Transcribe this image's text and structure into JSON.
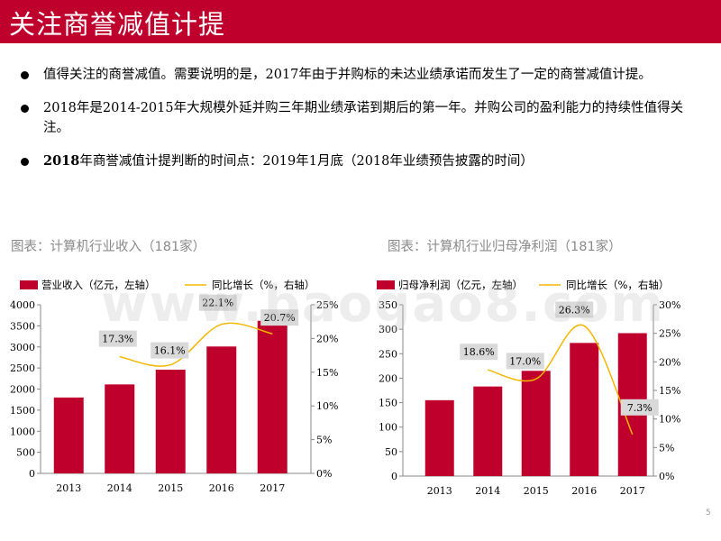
{
  "slide": {
    "title": "关注商誉减值计提",
    "bullets": [
      {
        "bold": "",
        "text": "值得关注的商誉减值。需要说明的是，2017年由于并购标的未达业绩承诺而发生了一定的商誉减值计提。"
      },
      {
        "bold": "",
        "text": "2018年是2014-2015年大规模外延并购三年期业绩承诺到期后的第一年。并购公司的盈利能力的持续性值得关注。"
      },
      {
        "bold": "2018",
        "text": "年商誉减值计提判断的时间点：2019年1月底（2018年业绩预告披露的时间）"
      }
    ],
    "watermark": "www.baogao8.com",
    "page_number": "5"
  },
  "colors": {
    "bar": "#c0002c",
    "line": "#f5b700",
    "title_bg": "#c0002c",
    "label_bg": "#d9d9d9"
  },
  "chart_data": [
    {
      "type": "bar",
      "caption": "图表：计算机行业收入（181家）",
      "categories": [
        "2013",
        "2014",
        "2015",
        "2016",
        "2017"
      ],
      "series": [
        {
          "name": "营业收入（亿元，左轴）",
          "axis": "left",
          "kind": "bar",
          "values": [
            1800,
            2110,
            2460,
            3010,
            3620
          ]
        },
        {
          "name": "同比增长（%，右轴）",
          "axis": "right",
          "kind": "line",
          "values": [
            null,
            17.3,
            16.1,
            22.1,
            20.7
          ],
          "labels": [
            "",
            "17.3%",
            "16.1%",
            "22.1%",
            "20.7%"
          ]
        }
      ],
      "left_axis": {
        "min": 0,
        "max": 4000,
        "ticks": [
          "0",
          "500",
          "1000",
          "1500",
          "2000",
          "2500",
          "3000",
          "3500",
          "4000"
        ]
      },
      "right_axis": {
        "min": 0,
        "max": 25,
        "ticks": [
          "0%",
          "5%",
          "10%",
          "15%",
          "20%",
          "25%"
        ]
      }
    },
    {
      "type": "bar",
      "caption": "图表：计算机行业归母净利润（181家）",
      "categories": [
        "2013",
        "2014",
        "2015",
        "2016",
        "2017"
      ],
      "series": [
        {
          "name": "归母净利润（亿元，左轴）",
          "axis": "left",
          "kind": "bar",
          "values": [
            155,
            183,
            215,
            272,
            292
          ]
        },
        {
          "name": "同比增长（%，右轴）",
          "axis": "right",
          "kind": "line",
          "values": [
            null,
            18.6,
            17.0,
            26.3,
            7.3
          ],
          "labels": [
            "",
            "18.6%",
            "17.0%",
            "26.3%",
            "7.3%"
          ]
        }
      ],
      "left_axis": {
        "min": 0,
        "max": 350,
        "ticks": [
          "0",
          "50",
          "100",
          "150",
          "200",
          "250",
          "300",
          "350"
        ]
      },
      "right_axis": {
        "min": 0,
        "max": 30,
        "ticks": [
          "0%",
          "5%",
          "10%",
          "15%",
          "20%",
          "25%",
          "30%"
        ]
      }
    }
  ]
}
